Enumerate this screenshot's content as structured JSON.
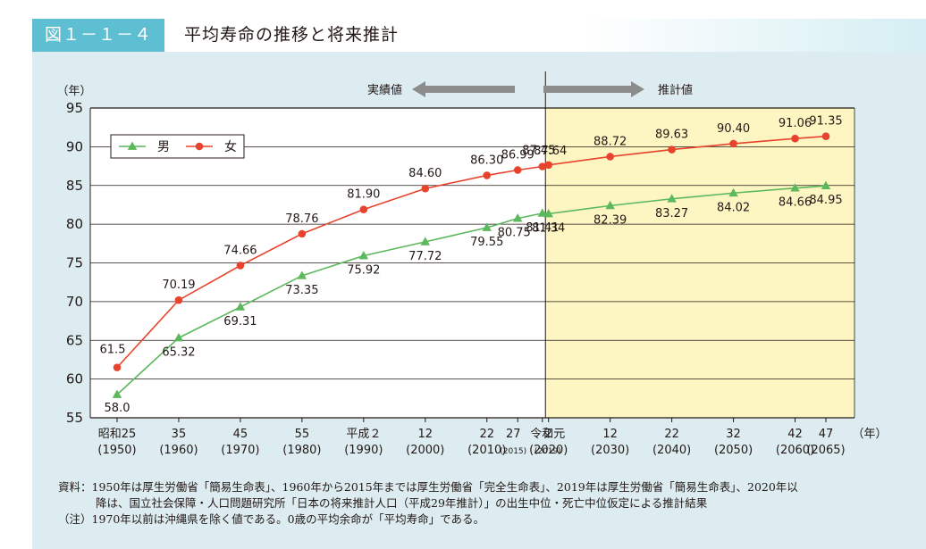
{
  "figure": {
    "label": "図１－１－４",
    "title": "平均寿命の推移と将来推計"
  },
  "colors": {
    "panel_bg": "#dcecf1",
    "projection_bg": "#fdf6c3",
    "male": "#5cb85c",
    "female": "#e8432c",
    "arrow": "#8c8c8c",
    "badge": "#5fbfd2"
  },
  "chart_data": {
    "type": "line",
    "ylabel": "（年）",
    "xlabel": "（年）",
    "ylim": [
      55,
      95
    ],
    "yticks": [
      95,
      90,
      85,
      80,
      75,
      70,
      65,
      60,
      55
    ],
    "grid": true,
    "legend_position": "top-left",
    "actual_label": "実績値",
    "projection_label": "推計値",
    "x_categories": [
      {
        "era": "昭和25",
        "year": "(1950)"
      },
      {
        "era": "35",
        "year": "(1960)"
      },
      {
        "era": "45",
        "year": "(1970)"
      },
      {
        "era": "55",
        "year": "(1980)"
      },
      {
        "era": "平成２",
        "year": "(1990)"
      },
      {
        "era": "12",
        "year": "(2000)"
      },
      {
        "era": "22",
        "year": "(2010)"
      },
      {
        "era": "27",
        "year": "(2015)"
      },
      {
        "era": "令和元",
        "year": "(2019)"
      },
      {
        "era": "2",
        "year": "(2020)"
      },
      {
        "era": "12",
        "year": "(2030)"
      },
      {
        "era": "22",
        "year": "(2040)"
      },
      {
        "era": "32",
        "year": "(2050)"
      },
      {
        "era": "42",
        "year": "(2060)"
      },
      {
        "era": "47",
        "year": "(2065)"
      }
    ],
    "x_years": [
      1950,
      1960,
      1970,
      1980,
      1990,
      2000,
      2010,
      2015,
      2019,
      2020,
      2030,
      2040,
      2050,
      2060,
      2065
    ],
    "projection_start_year": 2019.5,
    "series": [
      {
        "name": "男",
        "marker": "triangle",
        "values": [
          58.0,
          65.32,
          69.31,
          73.35,
          75.92,
          77.72,
          79.55,
          80.75,
          81.41,
          81.34,
          82.39,
          83.27,
          84.02,
          84.66,
          84.95
        ],
        "labels": [
          "58.0",
          "65.32",
          "69.31",
          "73.35",
          "75.92",
          "77.72",
          "79.55",
          "80.75",
          "81.41",
          "81.34",
          "82.39",
          "83.27",
          "84.02",
          "84.66",
          "84.95"
        ]
      },
      {
        "name": "女",
        "marker": "circle",
        "values": [
          61.5,
          70.19,
          74.66,
          78.76,
          81.9,
          84.6,
          86.3,
          86.99,
          87.45,
          87.64,
          88.72,
          89.63,
          90.4,
          91.06,
          91.35
        ],
        "labels": [
          "61.5",
          "70.19",
          "74.66",
          "78.76",
          "81.90",
          "84.60",
          "86.30",
          "86.99",
          "87.45",
          "87.64",
          "88.72",
          "89.63",
          "90.40",
          "91.06",
          "91.35"
        ]
      }
    ]
  },
  "source": {
    "line1": "資料：1950年は厚生労働省「簡易生命表」、1960年から2015年までは厚生労働省「完全生命表」、2019年は厚生労働省「簡易生命表」、2020年以",
    "line2": "降は、国立社会保障・人口問題研究所「日本の将来推計人口（平成29年推計）」の出生中位・死亡中位仮定による推計結果",
    "line3": "（注）1970年以前は沖縄県を除く値である。0歳の平均余命が「平均寿命」である。"
  }
}
